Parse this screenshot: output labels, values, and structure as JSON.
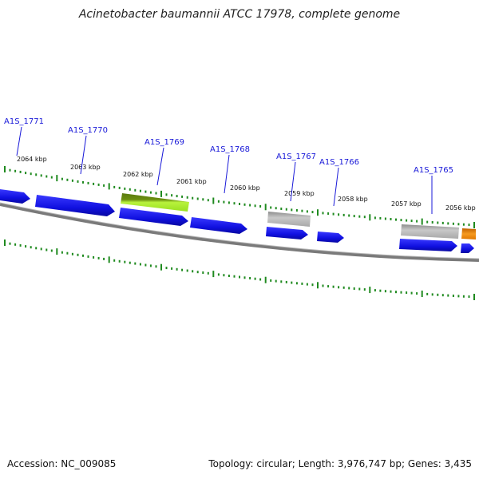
{
  "title": "Acinetobacter baumannii ATCC 17978, complete genome",
  "footer": {
    "accession": "Accession: NC_009085",
    "summary": "Topology: circular; Length: 3,976,747 bp; Genes: 3,435"
  },
  "colors": {
    "gene_forward": "#1a1aee",
    "gene_highlight_light": "#b8f23c",
    "gene_highlight_dark": "#6b8f10",
    "gene_grey": "#b0b0b0",
    "gene_orange": "#f08a10",
    "backbone": "#808080",
    "tick": "#1f8a1f",
    "label_blue": "#1818d8"
  },
  "kbp_ticks": [
    "2064 kbp",
    "2063 kbp",
    "2062 kbp",
    "2061 kbp",
    "2060 kbp",
    "2059 kbp",
    "2058 kbp",
    "2057 kbp",
    "2056 kbp"
  ],
  "gene_labels": [
    "A1S_1771",
    "A1S_1770",
    "A1S_1769",
    "A1S_1768",
    "A1S_1767",
    "A1S_1766",
    "A1S_1765"
  ]
}
